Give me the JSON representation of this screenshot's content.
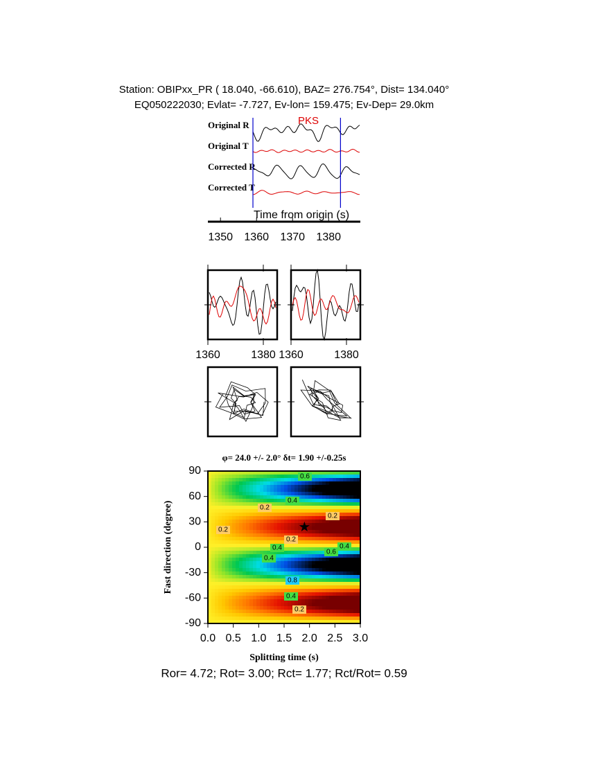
{
  "header": {
    "line1": "Station: OBIPxx_PR (  18.040,  -66.610), BAZ=  276.754°, Dist=  134.040°",
    "line2": "EQ050222030; Evlat=  -7.727, Ev-lon= 159.475; Ev-Dep= 29.0km"
  },
  "traces": {
    "labels": [
      "Original R",
      "Original T",
      "Corrected R",
      "Corrected T"
    ],
    "phase": "PKS",
    "xlabel": "Time from origin (s)",
    "xlim": [
      1346.5,
      1388.8
    ],
    "xticks": [
      1350,
      1360,
      1370,
      1380
    ],
    "window": [
      1359,
      1383.3
    ]
  },
  "window_panels": {
    "xlim": [
      1360,
      1385
    ],
    "xticks": [
      1360,
      1380
    ]
  },
  "grid_search": {
    "title": "φ= 24.0 +/- 2.0° δt= 1.90 +/-0.25s",
    "xlabel": "Splitting time (s)",
    "ylabel": "Fast direction (degree)",
    "xlim": [
      0,
      3
    ],
    "ylim": [
      -90,
      90
    ],
    "xticks": [
      {
        "value": 0,
        "label": "0.0"
      },
      0.5,
      {
        "value": 1,
        "label": "1.0"
      },
      1.5,
      {
        "value": 2,
        "label": "2.0"
      },
      2.5,
      {
        "value": 3,
        "label": "3.0"
      }
    ],
    "yticks": [
      90,
      60,
      30,
      0,
      -30,
      -60,
      -90
    ],
    "best": {
      "dt": 1.9,
      "phi": 24
    },
    "contour_labels": [
      "0.2",
      "0.2",
      "0.2",
      "0.4",
      "0.4",
      "0.4",
      "0.4",
      "0.6",
      "0.6",
      "0.8",
      "0.4",
      "0.2",
      "0.2"
    ]
  },
  "footer": "Ror= 4.72; Rot= 3.00; Rct= 1.77; Rct/Rot= 0.59"
}
